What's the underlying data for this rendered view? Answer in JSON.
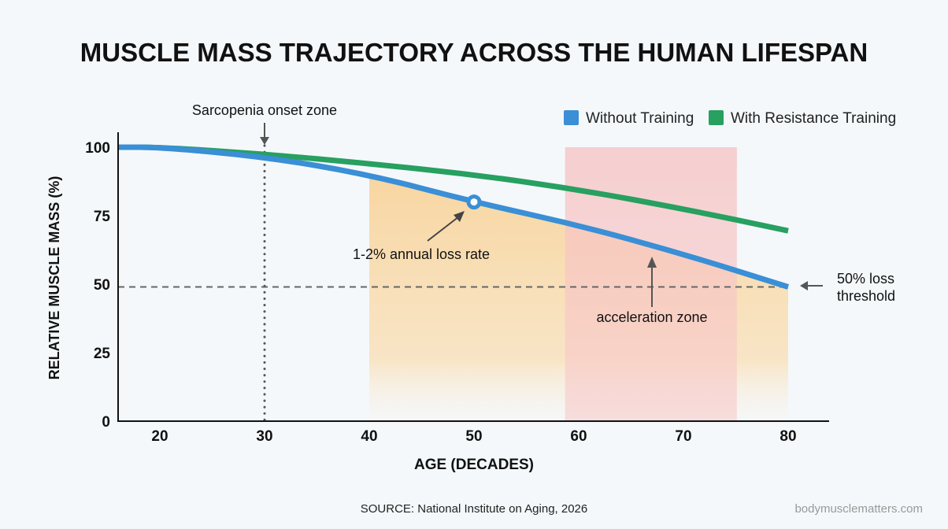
{
  "chart_data": {
    "type": "line",
    "title": "MUSCLE MASS TRAJECTORY ACROSS THE HUMAN LIFESPAN",
    "xlabel": "AGE (DECADES)",
    "ylabel": "RELATIVE MUSCLE MASS (%)",
    "xlim": [
      16,
      84
    ],
    "ylim": [
      0,
      105
    ],
    "xticks": [
      20,
      30,
      40,
      50,
      60,
      70,
      80
    ],
    "yticks": [
      0,
      25,
      50,
      75,
      100
    ],
    "grid": false,
    "legend_position": "top-right",
    "series": [
      {
        "name": "Without Training",
        "color": "#3a8fd6",
        "x": [
          16,
          20,
          30,
          40,
          50,
          60,
          70,
          80
        ],
        "y": [
          100,
          100,
          96.5,
          90,
          80,
          71.5,
          61,
          49
        ]
      },
      {
        "name": "With Resistance Training",
        "color": "#27a060",
        "x": [
          16,
          20,
          30,
          40,
          50,
          60,
          70,
          80
        ],
        "y": [
          100,
          100,
          97.5,
          94,
          90,
          84.5,
          77.5,
          69.5
        ]
      }
    ],
    "annotations": {
      "sarcopenia": {
        "text": "Sarcopenia onset zone",
        "x": 30
      },
      "loss_rate": {
        "text": "1-2% annual loss rate",
        "x": 50,
        "y": 80
      },
      "acceleration": {
        "text": "acceleration zone",
        "x_range": [
          58.7,
          75.1
        ],
        "color": "#f7c6c6"
      },
      "threshold": {
        "text_line1": "50% loss",
        "text_line2": "threshold",
        "y": 49
      },
      "shaded_decline": {
        "x_range": [
          40,
          80
        ],
        "color": "#f8d9a8"
      }
    },
    "source": "SOURCE: National Institute on Aging, 2026",
    "watermark": "bodymusclematters.com"
  }
}
